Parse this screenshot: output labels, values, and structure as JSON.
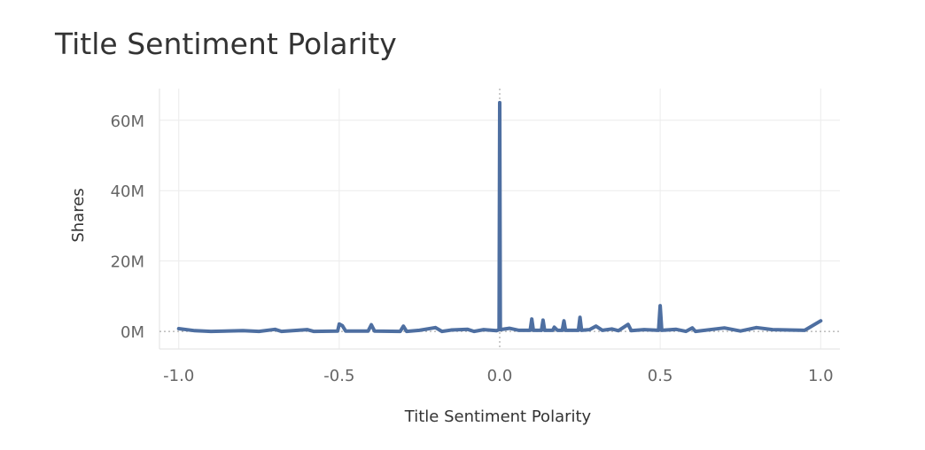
{
  "chart_data": {
    "type": "line",
    "title": "Title Sentiment Polarity",
    "xlabel": "Title Sentiment Polarity",
    "ylabel": "Shares",
    "xlim": [
      -1.06,
      1.06
    ],
    "ylim": [
      -5000000,
      69000000
    ],
    "x_ticks": [
      -1.0,
      -0.5,
      0.0,
      0.5,
      1.0
    ],
    "x_tick_labels": [
      "-1.0",
      "-0.5",
      "0.0",
      "0.5",
      "1.0"
    ],
    "y_ticks": [
      0,
      20000000,
      40000000,
      60000000
    ],
    "y_tick_labels": [
      "0M",
      "20M",
      "40M",
      "60M"
    ],
    "grid": true,
    "reference_lines": {
      "x": 0,
      "y": 0
    },
    "line_color": "#4e6fa1",
    "series": [
      {
        "values": [
          [
            -1.0,
            800000
          ],
          [
            -0.95,
            200000
          ],
          [
            -0.9,
            0
          ],
          [
            -0.8,
            200000
          ],
          [
            -0.75,
            0
          ],
          [
            -0.7,
            600000
          ],
          [
            -0.68,
            0
          ],
          [
            -0.6,
            500000
          ],
          [
            -0.58,
            0
          ],
          [
            -0.505,
            100000
          ],
          [
            -0.5,
            2100000
          ],
          [
            -0.49,
            1600000
          ],
          [
            -0.48,
            100000
          ],
          [
            -0.41,
            100000
          ],
          [
            -0.4,
            1900000
          ],
          [
            -0.39,
            100000
          ],
          [
            -0.31,
            0
          ],
          [
            -0.3,
            1500000
          ],
          [
            -0.29,
            0
          ],
          [
            -0.25,
            300000
          ],
          [
            -0.2,
            1100000
          ],
          [
            -0.18,
            0
          ],
          [
            -0.15,
            400000
          ],
          [
            -0.1,
            600000
          ],
          [
            -0.08,
            0
          ],
          [
            -0.05,
            500000
          ],
          [
            -0.01,
            200000
          ],
          [
            -0.002,
            500000
          ],
          [
            0.0,
            65000000
          ],
          [
            0.002,
            500000
          ],
          [
            0.03,
            900000
          ],
          [
            0.06,
            300000
          ],
          [
            0.095,
            300000
          ],
          [
            0.1,
            3500000
          ],
          [
            0.105,
            300000
          ],
          [
            0.13,
            300000
          ],
          [
            0.135,
            3200000
          ],
          [
            0.14,
            300000
          ],
          [
            0.165,
            300000
          ],
          [
            0.17,
            1200000
          ],
          [
            0.18,
            300000
          ],
          [
            0.195,
            300000
          ],
          [
            0.2,
            3000000
          ],
          [
            0.205,
            300000
          ],
          [
            0.245,
            300000
          ],
          [
            0.25,
            4000000
          ],
          [
            0.255,
            300000
          ],
          [
            0.28,
            500000
          ],
          [
            0.3,
            1500000
          ],
          [
            0.32,
            300000
          ],
          [
            0.35,
            700000
          ],
          [
            0.37,
            200000
          ],
          [
            0.4,
            2000000
          ],
          [
            0.41,
            200000
          ],
          [
            0.45,
            500000
          ],
          [
            0.495,
            300000
          ],
          [
            0.5,
            7300000
          ],
          [
            0.505,
            300000
          ],
          [
            0.55,
            600000
          ],
          [
            0.58,
            0
          ],
          [
            0.6,
            1000000
          ],
          [
            0.61,
            0
          ],
          [
            0.7,
            1000000
          ],
          [
            0.75,
            100000
          ],
          [
            0.8,
            1100000
          ],
          [
            0.85,
            500000
          ],
          [
            0.95,
            300000
          ],
          [
            1.0,
            3000000
          ]
        ]
      }
    ]
  }
}
